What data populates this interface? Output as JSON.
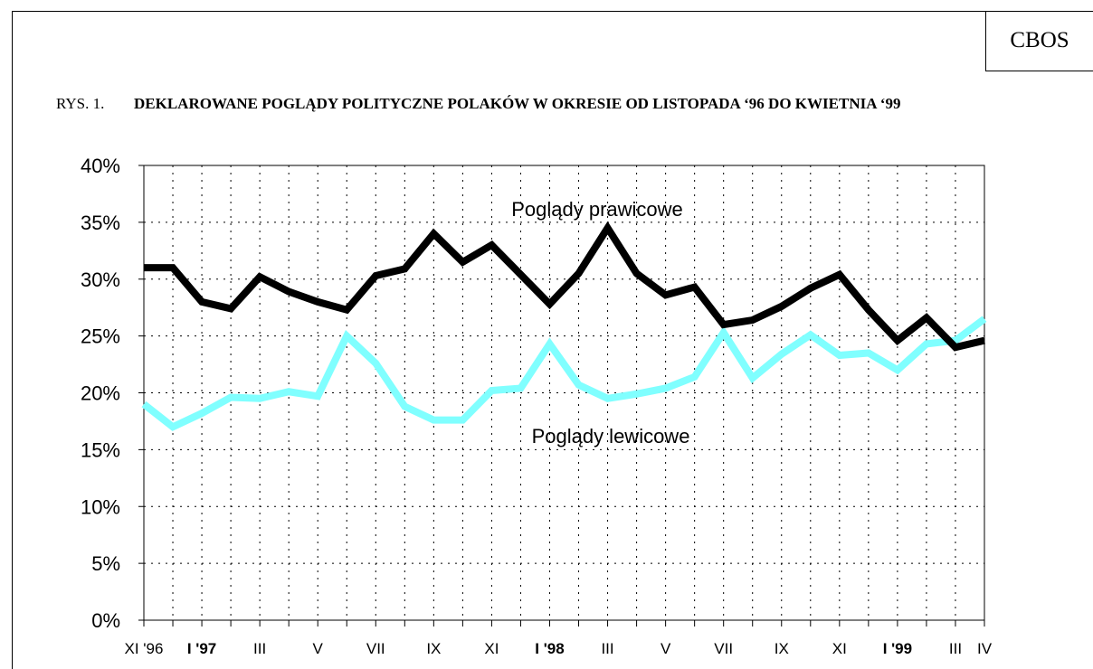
{
  "header": {
    "badge": "CBOS",
    "figure_prefix": "RYS. 1.",
    "title": "DEKLAROWANE POGLĄDY POLITYCZNE POLAKÓW W OKRESIE OD LISTOPADA ‘96 DO KWIETNIA ‘99"
  },
  "chart_data": {
    "type": "line",
    "title": "DEKLAROWANE POGLĄDY POLITYCZNE POLAKÓW W OKRESIE OD LISTOPADA ‘96 DO KWIETNIA ‘99",
    "xlabel": "",
    "ylabel": "",
    "ylim": [
      0,
      40
    ],
    "y_ticks": [
      "0%",
      "5%",
      "10%",
      "15%",
      "20%",
      "25%",
      "30%",
      "35%",
      "40%"
    ],
    "x_ticks": [
      {
        "label": "XI '96",
        "index": 0,
        "bold": false
      },
      {
        "label": "I '97",
        "index": 2,
        "bold": true
      },
      {
        "label": "III",
        "index": 4,
        "bold": false
      },
      {
        "label": "V",
        "index": 6,
        "bold": false
      },
      {
        "label": "VII",
        "index": 8,
        "bold": false
      },
      {
        "label": "IX",
        "index": 10,
        "bold": false
      },
      {
        "label": "XI",
        "index": 12,
        "bold": false
      },
      {
        "label": "I '98",
        "index": 14,
        "bold": true
      },
      {
        "label": "III",
        "index": 16,
        "bold": false
      },
      {
        "label": "V",
        "index": 18,
        "bold": false
      },
      {
        "label": "VII",
        "index": 20,
        "bold": false
      },
      {
        "label": "IX",
        "index": 22,
        "bold": false
      },
      {
        "label": "XI",
        "index": 24,
        "bold": false
      },
      {
        "label": "I '99",
        "index": 26,
        "bold": true
      },
      {
        "label": "III",
        "index": 28,
        "bold": false
      },
      {
        "label": "IV",
        "index": 29,
        "bold": false
      }
    ],
    "grid": true,
    "series": [
      {
        "name": "Poglądy prawicowe",
        "color": "#000000",
        "values": [
          31,
          31,
          28,
          27.4,
          30.2,
          28.9,
          28,
          27.3,
          30.3,
          30.9,
          34,
          31.5,
          33,
          30.4,
          27.8,
          30.5,
          34.5,
          30.5,
          28.6,
          29.3,
          26,
          26.4,
          27.6,
          29.2,
          30.4,
          27.3,
          24.6,
          26.6,
          24,
          24.6
        ]
      },
      {
        "name": "Poglądy lewicowe",
        "color": "#80ffff",
        "values": [
          19,
          17,
          18.2,
          19.6,
          19.5,
          20.1,
          19.7,
          25,
          22.6,
          18.8,
          17.6,
          17.6,
          20.2,
          20.4,
          24.3,
          20.7,
          19.5,
          19.9,
          20.4,
          21.4,
          25.3,
          21.3,
          23.4,
          25.1,
          23.3,
          23.5,
          22,
          24.3,
          24.6,
          26.5
        ]
      }
    ]
  }
}
